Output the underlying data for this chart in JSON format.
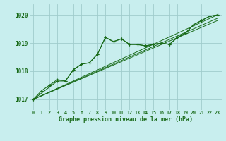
{
  "xlabel": "Graphe pression niveau de la mer (hPa)",
  "x_ticks": [
    0,
    1,
    2,
    3,
    4,
    5,
    6,
    7,
    8,
    9,
    10,
    11,
    12,
    13,
    14,
    15,
    16,
    17,
    18,
    19,
    20,
    21,
    22,
    23
  ],
  "y_ticks": [
    1017,
    1018,
    1019,
    1020
  ],
  "ylim": [
    1016.62,
    1020.38
  ],
  "xlim": [
    -0.5,
    23.5
  ],
  "background_color": "#c8eeee",
  "grid_color": "#a0cccc",
  "line_color": "#1a6b1a",
  "series_main": [
    1017.0,
    1017.3,
    1017.5,
    1017.7,
    1017.65,
    1018.05,
    1018.25,
    1018.3,
    1018.6,
    1019.2,
    1019.05,
    1019.15,
    1018.95,
    1018.95,
    1018.9,
    1018.95,
    1019.0,
    1018.95,
    1019.2,
    1019.35,
    1019.65,
    1019.8,
    1019.95,
    1020.0
  ],
  "series_alt_x": [
    0,
    3,
    4,
    5,
    6,
    7,
    8,
    9,
    10,
    11,
    12,
    13,
    14,
    15,
    16,
    17,
    18,
    19,
    20,
    21,
    22,
    23
  ],
  "series_alt": [
    1017.0,
    1017.65,
    1017.65,
    1018.05,
    1018.25,
    1018.3,
    1018.6,
    1019.2,
    1019.05,
    1019.15,
    1018.95,
    1018.95,
    1018.9,
    1018.95,
    1019.0,
    1018.95,
    1019.2,
    1019.35,
    1019.65,
    1019.8,
    1019.95,
    1020.0
  ],
  "trend_lines": [
    [
      1017.0,
      1019.8
    ],
    [
      1017.0,
      1019.88
    ],
    [
      1017.0,
      1020.0
    ]
  ]
}
